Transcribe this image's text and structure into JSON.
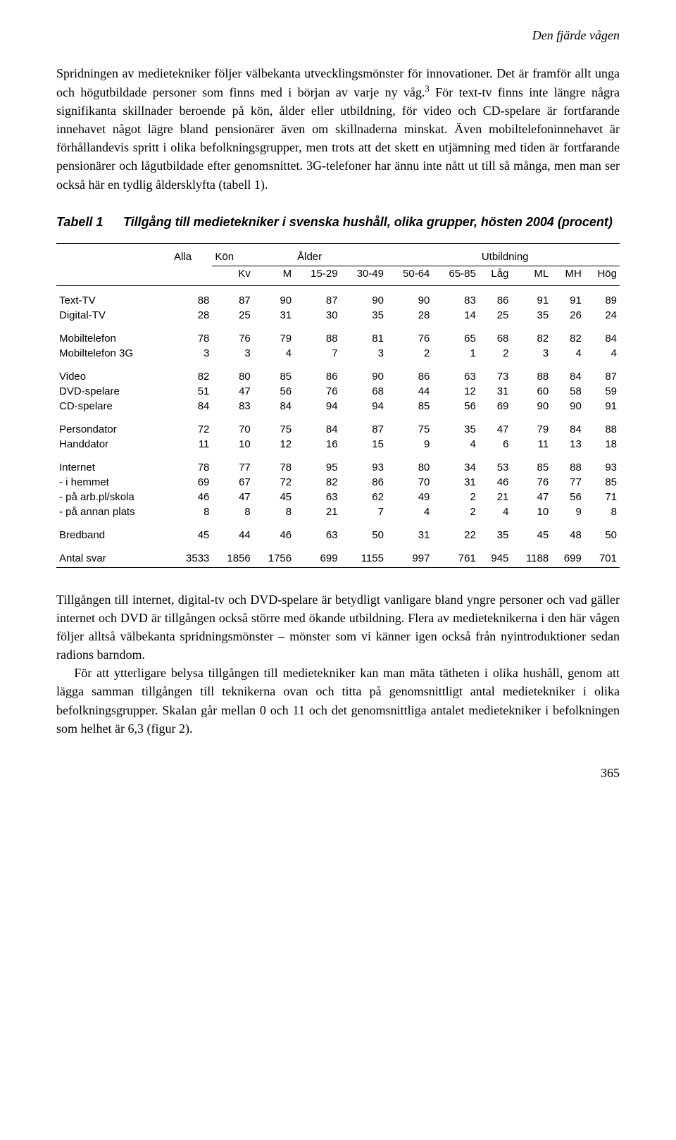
{
  "runningHeader": "Den fjärde vågen",
  "para1": "Spridningen av medietekniker följer välbekanta utvecklingsmönster för innovationer. Det är framför allt unga och högutbildade personer som finns med i början av varje ny våg.",
  "footnoteMark": "3",
  "para1b": " För text-tv finns inte längre några signifikanta skillnader beroende på kön, ålder eller utbildning, för video och  CD-spelare är fortfarande innehavet något lägre bland pensionärer även om skillnaderna minskat. Även mobiltelefoninnehavet är förhållandevis spritt i olika befolkningsgrupper, men trots att det skett en utjämning med tiden är fortfarande pensionärer och lågutbildade efter genomsnittet. 3G-telefoner har ännu inte nått ut till så många, men man ser också här en tydlig åldersklyfta (tabell 1).",
  "tableLabel": "Tabell 1",
  "tableTitle": "Tillgång till medietekniker i svenska hushåll, olika grupper, hösten 2004 (procent)",
  "groupHeaders": {
    "alla": "Alla",
    "kon": "Kön",
    "alder": "Ålder",
    "utbildning": "Utbildning"
  },
  "subHeaders": {
    "kv": "Kv",
    "m": "M",
    "a1": "15-29",
    "a2": "30-49",
    "a3": "50-64",
    "a4": "65-85",
    "lag": "Låg",
    "ml": "ML",
    "mh": "MH",
    "hog": "Hög"
  },
  "sections": [
    [
      {
        "label": "Text-TV",
        "v": [
          88,
          87,
          90,
          87,
          90,
          90,
          83,
          86,
          91,
          91,
          89
        ]
      },
      {
        "label": "Digital-TV",
        "v": [
          28,
          25,
          31,
          30,
          35,
          28,
          14,
          25,
          35,
          26,
          24
        ]
      }
    ],
    [
      {
        "label": "Mobiltelefon",
        "v": [
          78,
          76,
          79,
          88,
          81,
          76,
          65,
          68,
          82,
          82,
          84
        ]
      },
      {
        "label": "Mobiltelefon 3G",
        "v": [
          3,
          3,
          4,
          7,
          3,
          2,
          1,
          2,
          3,
          4,
          4
        ]
      }
    ],
    [
      {
        "label": "Video",
        "v": [
          82,
          80,
          85,
          86,
          90,
          86,
          63,
          73,
          88,
          84,
          87
        ]
      },
      {
        "label": "DVD-spelare",
        "v": [
          51,
          47,
          56,
          76,
          68,
          44,
          12,
          31,
          60,
          58,
          59
        ]
      },
      {
        "label": "CD-spelare",
        "v": [
          84,
          83,
          84,
          94,
          94,
          85,
          56,
          69,
          90,
          90,
          91
        ]
      }
    ],
    [
      {
        "label": "Persondator",
        "v": [
          72,
          70,
          75,
          84,
          87,
          75,
          35,
          47,
          79,
          84,
          88
        ]
      },
      {
        "label": "Handdator",
        "v": [
          11,
          10,
          12,
          16,
          15,
          9,
          4,
          6,
          11,
          13,
          18
        ]
      }
    ],
    [
      {
        "label": "Internet",
        "v": [
          78,
          77,
          78,
          95,
          93,
          80,
          34,
          53,
          85,
          88,
          93
        ]
      },
      {
        "label": "- i hemmet",
        "v": [
          69,
          67,
          72,
          82,
          86,
          70,
          31,
          46,
          76,
          77,
          85
        ]
      },
      {
        "label": "- på arb.pl/skola",
        "v": [
          46,
          47,
          45,
          63,
          62,
          49,
          2,
          21,
          47,
          56,
          71
        ]
      },
      {
        "label": "- på annan plats",
        "v": [
          8,
          8,
          8,
          21,
          7,
          4,
          2,
          4,
          10,
          9,
          8
        ]
      }
    ],
    [
      {
        "label": "Bredband",
        "v": [
          45,
          44,
          46,
          63,
          50,
          31,
          22,
          35,
          45,
          48,
          50
        ]
      }
    ],
    [
      {
        "label": "Antal svar",
        "v": [
          3533,
          1856,
          1756,
          699,
          1155,
          997,
          761,
          945,
          1188,
          699,
          701
        ]
      }
    ]
  ],
  "para2": "Tillgången till internet, digital-tv och DVD-spelare är betydligt vanligare bland yngre personer och vad gäller internet och DVD är tillgången också större med ökande utbildning. Flera av medieteknikerna i den här vågen följer alltså välbekanta spridningsmönster – mönster som vi känner igen också från nyintroduktioner sedan radions barndom.",
  "para3": "För att ytterligare belysa tillgången till medietekniker kan man mäta tätheten i olika hushåll, genom att lägga samman tillgången till teknikerna ovan och titta på genomsnittligt antal medietekniker i olika befolkningsgrupper. Skalan går mellan 0 och 11 och det genomsnittliga antalet medietekniker i befolkningen som helhet är 6,3 (figur 2).",
  "pageNumber": "365"
}
